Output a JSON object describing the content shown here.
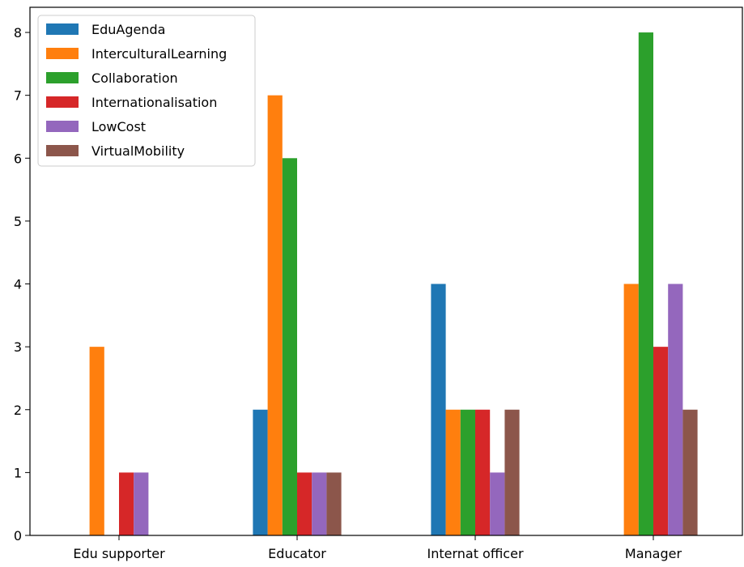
{
  "chart_data": {
    "type": "bar",
    "title": "",
    "xlabel": "",
    "ylabel": "",
    "categories": [
      "Edu supporter",
      "Educator",
      "Internat officer",
      "Manager"
    ],
    "ylim": [
      0,
      8.4
    ],
    "yticks": [
      0,
      1,
      2,
      3,
      4,
      5,
      6,
      7,
      8
    ],
    "grid": false,
    "legend_position": "top-left",
    "series": [
      {
        "name": "EduAgenda",
        "color": "#1f77b4",
        "values": [
          0,
          2,
          4,
          0
        ]
      },
      {
        "name": "InterculturalLearning",
        "color": "#ff7f0e",
        "values": [
          3,
          7,
          2,
          4
        ]
      },
      {
        "name": "Collaboration",
        "color": "#2ca02c",
        "values": [
          0,
          6,
          2,
          8
        ]
      },
      {
        "name": "Internationalisation",
        "color": "#d62728",
        "values": [
          1,
          1,
          2,
          3
        ]
      },
      {
        "name": "LowCost",
        "color": "#9467bd",
        "values": [
          1,
          1,
          1,
          4
        ]
      },
      {
        "name": "VirtualMobility",
        "color": "#8c564b",
        "values": [
          0,
          1,
          2,
          2
        ]
      }
    ]
  }
}
